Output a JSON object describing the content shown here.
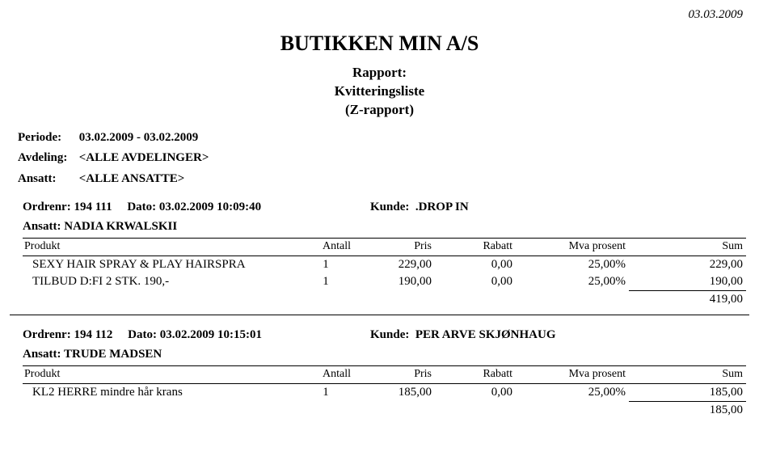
{
  "topDate": "03.03.2009",
  "company": "BUTIKKEN MIN A/S",
  "report": {
    "line1": "Rapport:",
    "line2": "Kvitteringsliste",
    "line3": "(Z-rapport)"
  },
  "filters": {
    "periodeLabel": "Periode:",
    "periode": "03.02.2009 - 03.02.2009",
    "avdelingLabel": "Avdeling:",
    "avdeling": "<ALLE AVDELINGER>",
    "ansattLabel": "Ansatt:",
    "ansatt": "<ALLE ANSATTE>"
  },
  "columns": {
    "produkt": "Produkt",
    "antall": "Antall",
    "pris": "Pris",
    "rabatt": "Rabatt",
    "mva": "Mva prosent",
    "sum": "Sum"
  },
  "labels": {
    "ordrenr": "Ordrenr:",
    "dato": "Dato:",
    "kunde": "Kunde:",
    "ansatt": "Ansatt:"
  },
  "orders": [
    {
      "ordrenr": "194 111",
      "dato": "03.02.2009 10:09:40",
      "kunde": ".DROP IN",
      "ansatt": "NADIA KRWALSKII",
      "lines": [
        {
          "produkt": "SEXY HAIR SPRAY & PLAY HAIRSPRA",
          "antall": "1",
          "pris": "229,00",
          "rabatt": "0,00",
          "mva": "25,00%",
          "sum": "229,00"
        },
        {
          "produkt": "TILBUD D:FI 2 STK. 190,-",
          "antall": "1",
          "pris": "190,00",
          "rabatt": "0,00",
          "mva": "25,00%",
          "sum": "190,00"
        }
      ],
      "total": "419,00"
    },
    {
      "ordrenr": "194 112",
      "dato": "03.02.2009 10:15:01",
      "kunde": "PER ARVE SKJØNHAUG",
      "ansatt": "TRUDE MADSEN",
      "lines": [
        {
          "produkt": "KL2 HERRE mindre hår krans",
          "antall": "1",
          "pris": "185,00",
          "rabatt": "0,00",
          "mva": "25,00%",
          "sum": "185,00"
        }
      ],
      "total": "185,00"
    }
  ]
}
